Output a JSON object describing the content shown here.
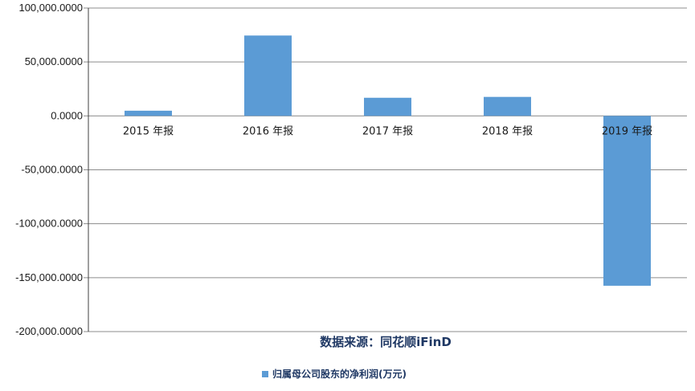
{
  "chart_data": {
    "type": "bar",
    "categories": [
      "2015 年报",
      "2016 年报",
      "2017 年报",
      "2018 年报",
      "2019 年报"
    ],
    "series": [
      {
        "name": "归属母公司股东的净利润(万元)",
        "values": [
          4800,
          74500,
          16800,
          17600,
          -157500
        ],
        "color": "#5b9bd5"
      }
    ],
    "ylim": [
      -200000,
      100000
    ],
    "yticks": [
      100000,
      50000,
      0,
      -50000,
      -100000,
      -150000,
      -200000
    ],
    "ytick_labels": [
      "100,000.0000",
      "50,000.0000",
      "0.0000",
      "-50,000.0000",
      "-100,000.0000",
      "-150,000.0000",
      "-200,000.0000"
    ],
    "grid": true,
    "legend_position": "bottom"
  },
  "source_text": "数据来源：同花顺iFinD",
  "colors": {
    "bar": "#5b9bd5",
    "grid": "#8c8c8c",
    "axis": "#404040",
    "source": "#1f3864"
  }
}
